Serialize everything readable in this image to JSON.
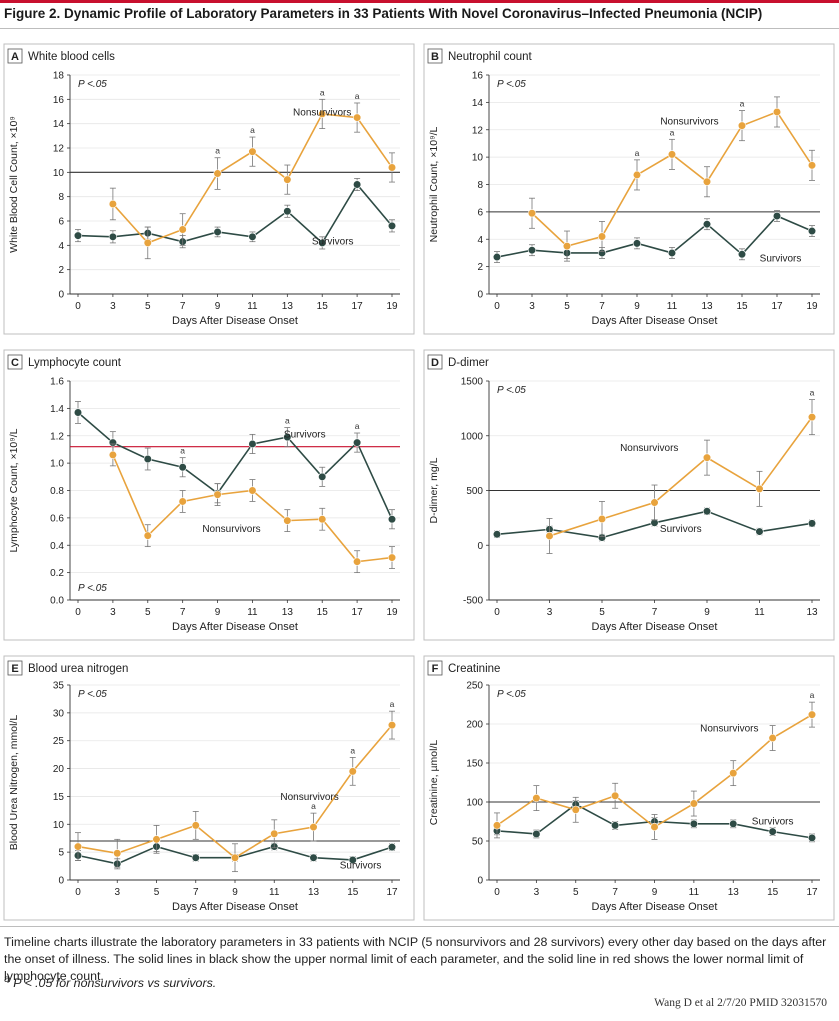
{
  "figure_title": "Figure 2. Dynamic Profile of Laboratory Parameters in 33 Patients With Novel Coronavirus–Infected Pneumonia (NCIP)",
  "caption": "Timeline charts illustrate the laboratory parameters in 33 patients with NCIP (5 nonsurvivors and 28 survivors) every other day based on the days after the onset of illness. The solid lines in black show the upper normal limit of each parameter, and the solid line in red shows the lower normal limit of lymphocyte count.",
  "footnote_sup": "a",
  "footnote": " P < .05 for nonsurvivors vs survivors.",
  "credit": "Wang D et al 2/7/20  PMID 32031570",
  "colors": {
    "nonsurvivors": "#e8a33d",
    "survivors": "#2e4b45",
    "upper_limit": "#333333",
    "lower_limit": "#c8102e"
  },
  "chart_data": [
    {
      "id": "A",
      "type": "line",
      "title": "White blood cells",
      "xlabel": "Days After Disease Onset",
      "ylabel": "White Blood Cell Count, ×10⁹",
      "x": [
        0,
        1,
        2,
        3,
        4,
        5,
        6,
        7,
        8,
        9
      ],
      "categories": [
        "0",
        "3",
        "5",
        "7",
        "9",
        "11",
        "13",
        "15",
        "17",
        "19"
      ],
      "ylim": [
        0,
        18
      ],
      "yticks": [
        0,
        2,
        4,
        6,
        8,
        10,
        12,
        14,
        16,
        18
      ],
      "pval": "P <.05",
      "pval_pos": "top",
      "ref_lines": [
        {
          "y": 10,
          "kind": "upper"
        }
      ],
      "series": [
        {
          "name": "Nonsurvivors",
          "key": "nonsurvivors",
          "x": [
            1,
            2,
            3,
            4,
            5,
            6,
            7,
            8,
            9
          ],
          "values": [
            7.4,
            4.2,
            5.3,
            9.9,
            11.7,
            9.4,
            14.8,
            14.5,
            10.4
          ],
          "err": [
            1.3,
            1.3,
            1.3,
            1.3,
            1.2,
            1.2,
            1.2,
            1.2,
            1.2
          ],
          "sig": [
            0,
            0,
            0,
            1,
            1,
            0,
            1,
            1,
            0
          ],
          "label_at": [
            7.0,
            14.9
          ]
        },
        {
          "name": "Survivors",
          "key": "survivors",
          "x": [
            0,
            1,
            2,
            3,
            4,
            5,
            6,
            7,
            8,
            9
          ],
          "values": [
            4.8,
            4.7,
            5.0,
            4.3,
            5.1,
            4.7,
            6.8,
            4.2,
            9.0,
            5.6
          ],
          "err": [
            0.5,
            0.5,
            0.5,
            0.5,
            0.4,
            0.4,
            0.5,
            0.5,
            0.5,
            0.5
          ],
          "label_at": [
            7.3,
            4.3
          ]
        }
      ]
    },
    {
      "id": "B",
      "type": "line",
      "title": "Neutrophil count",
      "xlabel": "Days After Disease Onset",
      "ylabel": "Neutrophil Count, ×10⁹/L",
      "x": [
        0,
        1,
        2,
        3,
        4,
        5,
        6,
        7,
        8,
        9
      ],
      "categories": [
        "0",
        "3",
        "5",
        "7",
        "9",
        "11",
        "13",
        "15",
        "17",
        "19"
      ],
      "ylim": [
        0,
        16
      ],
      "yticks": [
        0,
        2,
        4,
        6,
        8,
        10,
        12,
        14,
        16
      ],
      "pval": "P <.05",
      "pval_pos": "top",
      "ref_lines": [
        {
          "y": 6,
          "kind": "upper"
        }
      ],
      "series": [
        {
          "name": "Nonsurvivors",
          "key": "nonsurvivors",
          "x": [
            1,
            2,
            3,
            4,
            5,
            6,
            7,
            8,
            9
          ],
          "values": [
            5.9,
            3.5,
            4.2,
            8.7,
            10.2,
            8.2,
            12.3,
            13.3,
            9.4
          ],
          "err": [
            1.1,
            1.1,
            1.1,
            1.1,
            1.1,
            1.1,
            1.1,
            1.1,
            1.1
          ],
          "sig": [
            0,
            0,
            0,
            1,
            1,
            0,
            1,
            0,
            0
          ],
          "label_at": [
            5.5,
            12.6
          ]
        },
        {
          "name": "Survivors",
          "key": "survivors",
          "x": [
            0,
            1,
            2,
            3,
            4,
            5,
            6,
            7,
            8,
            9
          ],
          "values": [
            2.7,
            3.2,
            3.0,
            3.0,
            3.7,
            3.0,
            5.1,
            2.9,
            5.7,
            4.6
          ],
          "err": [
            0.4,
            0.4,
            0.4,
            0.4,
            0.4,
            0.4,
            0.4,
            0.4,
            0.4,
            0.4
          ],
          "label_at": [
            8.1,
            2.6
          ]
        }
      ]
    },
    {
      "id": "C",
      "type": "line",
      "title": "Lymphocyte count",
      "xlabel": "Days After Disease Onset",
      "ylabel": "Lymphocyte Count, ×10⁹/L",
      "x": [
        0,
        1,
        2,
        3,
        4,
        5,
        6,
        7,
        8,
        9
      ],
      "categories": [
        "0",
        "3",
        "5",
        "7",
        "9",
        "11",
        "13",
        "15",
        "17",
        "19"
      ],
      "ylim": [
        0,
        1.6
      ],
      "yticks": [
        0,
        0.2,
        0.4,
        0.6,
        0.8,
        1.0,
        1.2,
        1.4,
        1.6
      ],
      "pval": "P <.05",
      "pval_pos": "bottom",
      "ref_lines": [
        {
          "y": 1.12,
          "kind": "lower"
        }
      ],
      "series": [
        {
          "name": "Nonsurvivors",
          "key": "nonsurvivors",
          "x": [
            1,
            2,
            3,
            4,
            5,
            6,
            7,
            8,
            9
          ],
          "values": [
            1.06,
            0.47,
            0.72,
            0.77,
            0.8,
            0.58,
            0.59,
            0.28,
            0.31
          ],
          "err": [
            0.08,
            0.08,
            0.08,
            0.08,
            0.08,
            0.08,
            0.08,
            0.08,
            0.08
          ],
          "label_at": [
            4.4,
            0.52
          ]
        },
        {
          "name": "Survivors",
          "key": "survivors",
          "x": [
            0,
            1,
            2,
            3,
            4,
            5,
            6,
            7,
            8,
            9
          ],
          "values": [
            1.37,
            1.15,
            1.03,
            0.97,
            0.78,
            1.14,
            1.19,
            0.9,
            1.15,
            0.59
          ],
          "err": [
            0.08,
            0.08,
            0.08,
            0.07,
            0.07,
            0.07,
            0.07,
            0.07,
            0.07,
            0.07
          ],
          "sig": [
            0,
            0,
            0,
            1,
            0,
            0,
            1,
            0,
            1,
            0
          ],
          "label_at": [
            6.5,
            1.21
          ]
        }
      ]
    },
    {
      "id": "D",
      "type": "line",
      "title": "D-dimer",
      "xlabel": "Days After Disease Onset",
      "ylabel": "D-dimer, mg/L",
      "x": [
        0,
        1,
        2,
        3,
        4,
        5,
        6
      ],
      "categories": [
        "0",
        "3",
        "5",
        "7",
        "9",
        "11",
        "13"
      ],
      "ylim": [
        -500,
        1500
      ],
      "yticks": [
        -500,
        0,
        500,
        1000,
        1500
      ],
      "pval": "P <.05",
      "pval_pos": "top",
      "ref_lines": [
        {
          "y": 500,
          "kind": "upper"
        }
      ],
      "series": [
        {
          "name": "Nonsurvivors",
          "key": "nonsurvivors",
          "x": [
            1,
            2,
            3,
            4,
            5,
            6
          ],
          "values": [
            85,
            240,
            390,
            800,
            515,
            1170
          ],
          "err": [
            160,
            160,
            160,
            160,
            160,
            160
          ],
          "sig": [
            0,
            0,
            0,
            0,
            0,
            1
          ],
          "label_at": [
            2.9,
            890
          ]
        },
        {
          "name": "Survivors",
          "key": "survivors",
          "x": [
            0,
            1,
            2,
            3,
            4,
            5,
            6
          ],
          "values": [
            100,
            145,
            70,
            205,
            310,
            125,
            200
          ],
          "err": [
            30,
            30,
            30,
            30,
            30,
            30,
            30
          ],
          "label_at": [
            3.5,
            150
          ]
        }
      ]
    },
    {
      "id": "E",
      "type": "line",
      "title": "Blood urea nitrogen",
      "xlabel": "Days After Disease Onset",
      "ylabel": "Blood Urea Nitrogen, mmol/L",
      "x": [
        0,
        1,
        2,
        3,
        4,
        5,
        6,
        7,
        8
      ],
      "categories": [
        "0",
        "3",
        "5",
        "7",
        "9",
        "11",
        "13",
        "15",
        "17"
      ],
      "ylim": [
        0,
        35
      ],
      "yticks": [
        0,
        5,
        10,
        15,
        20,
        25,
        30,
        35
      ],
      "pval": "P <.05",
      "pval_pos": "top",
      "ref_lines": [
        {
          "y": 7,
          "kind": "upper"
        }
      ],
      "series": [
        {
          "name": "Nonsurvivors",
          "key": "nonsurvivors",
          "x": [
            0,
            1,
            2,
            3,
            4,
            5,
            6,
            7,
            8
          ],
          "values": [
            6.0,
            4.8,
            7.3,
            9.8,
            4.0,
            8.3,
            9.5,
            19.5,
            27.8
          ],
          "err": [
            2.5,
            2.5,
            2.5,
            2.5,
            2.5,
            2.5,
            2.5,
            2.5,
            2.5
          ],
          "sig": [
            0,
            0,
            0,
            0,
            0,
            0,
            1,
            1,
            1
          ],
          "label_at": [
            5.9,
            14.9
          ]
        },
        {
          "name": "Survivors",
          "key": "survivors",
          "x": [
            0,
            1,
            2,
            3,
            4,
            5,
            6,
            7,
            8
          ],
          "values": [
            4.4,
            2.9,
            6.0,
            4.0,
            4.0,
            6.0,
            4.0,
            3.6,
            5.9
          ],
          "err": [
            0.9,
            0.9,
            0.9,
            0.6,
            0.6,
            0.6,
            0.6,
            0.6,
            0.6
          ],
          "label_at": [
            7.2,
            2.6
          ]
        }
      ]
    },
    {
      "id": "F",
      "type": "line",
      "title": "Creatinine",
      "xlabel": "Days After Disease Onset",
      "ylabel": "Creatinine, µmol/L",
      "x": [
        0,
        1,
        2,
        3,
        4,
        5,
        6,
        7,
        8
      ],
      "categories": [
        "0",
        "3",
        "5",
        "7",
        "9",
        "11",
        "13",
        "15",
        "17"
      ],
      "ylim": [
        0,
        250
      ],
      "yticks": [
        0,
        50,
        100,
        150,
        200,
        250
      ],
      "pval": "P <.05",
      "pval_pos": "top",
      "ref_lines": [
        {
          "y": 100,
          "kind": "upper"
        }
      ],
      "series": [
        {
          "name": "Nonsurvivors",
          "key": "nonsurvivors",
          "x": [
            0,
            1,
            2,
            3,
            4,
            5,
            6,
            7,
            8
          ],
          "values": [
            70,
            105,
            90,
            108,
            68,
            98,
            137,
            182,
            212
          ],
          "err": [
            16,
            16,
            16,
            16,
            16,
            16,
            16,
            16,
            16
          ],
          "sig": [
            0,
            0,
            0,
            0,
            0,
            0,
            0,
            0,
            1
          ],
          "label_at": [
            5.9,
            194
          ]
        },
        {
          "name": "Survivors",
          "key": "survivors",
          "x": [
            0,
            1,
            2,
            3,
            4,
            5,
            6,
            7,
            8
          ],
          "values": [
            63,
            59,
            97,
            70,
            75,
            72,
            72,
            62,
            54
          ],
          "err": [
            5,
            5,
            5,
            5,
            5,
            5,
            5,
            5,
            5
          ],
          "label_at": [
            7.0,
            75
          ]
        }
      ]
    }
  ]
}
